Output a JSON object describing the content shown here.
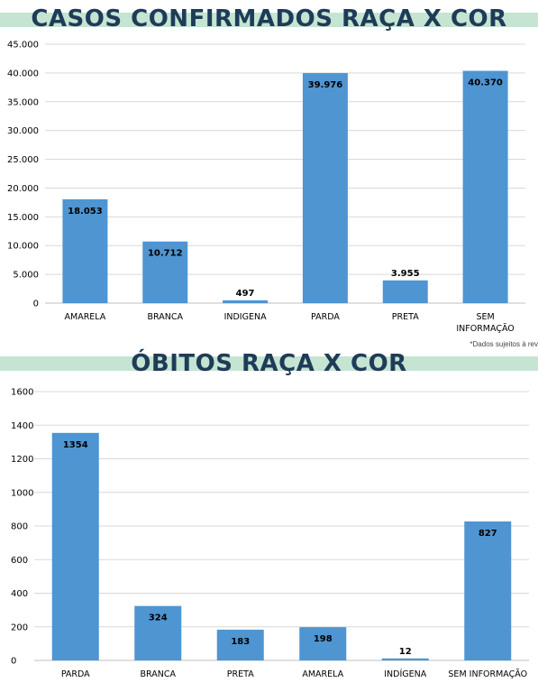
{
  "chart_data": [
    {
      "type": "bar",
      "title": "CASOS CONFIRMADOS  RAÇA X COR",
      "categories": [
        "AMARELA",
        "BRANCA",
        "INDIGENA",
        "PARDA",
        "PRETA",
        "SEM INFORMAÇÃO"
      ],
      "category_lines": [
        [
          "AMARELA"
        ],
        [
          "BRANCA"
        ],
        [
          "INDIGENA"
        ],
        [
          "PARDA"
        ],
        [
          "PRETA"
        ],
        [
          "SEM",
          "INFORMAÇÃO"
        ]
      ],
      "values": [
        18053,
        10712,
        497,
        39976,
        3955,
        40370
      ],
      "data_labels": [
        "18.053",
        "10.712",
        "497",
        "39.976",
        "3.955",
        "40.370"
      ],
      "yticks": [
        "0",
        "5.000",
        "10.000",
        "15.000",
        "20.000",
        "25.000",
        "30.000",
        "35.000",
        "40.000",
        "45.000"
      ],
      "ylim": [
        0,
        45000
      ],
      "ytick_step": 5000,
      "grid": true,
      "bar_color": "#4e95d2",
      "note": "*Dados sujeitos à rev"
    },
    {
      "type": "bar",
      "title": "ÓBITOS RAÇA X COR",
      "categories": [
        "PARDA",
        "BRANCA",
        "PRETA",
        "AMARELA",
        "INDÍGENA",
        "SEM INFORMAÇÃO"
      ],
      "category_lines": [
        [
          "PARDA"
        ],
        [
          "BRANCA"
        ],
        [
          "PRETA"
        ],
        [
          "AMARELA"
        ],
        [
          "INDÍGENA"
        ],
        [
          "SEM INFORMAÇÃO"
        ]
      ],
      "values": [
        1354,
        324,
        183,
        198,
        12,
        827
      ],
      "data_labels": [
        "1354",
        "324",
        "183",
        "198",
        "12",
        "827"
      ],
      "yticks": [
        "0",
        "200",
        "400",
        "600",
        "800",
        "1000",
        "1200",
        "1400",
        "1600"
      ],
      "ylim": [
        0,
        1600
      ],
      "ytick_step": 200,
      "grid": true,
      "bar_color": "#4e95d2"
    }
  ]
}
